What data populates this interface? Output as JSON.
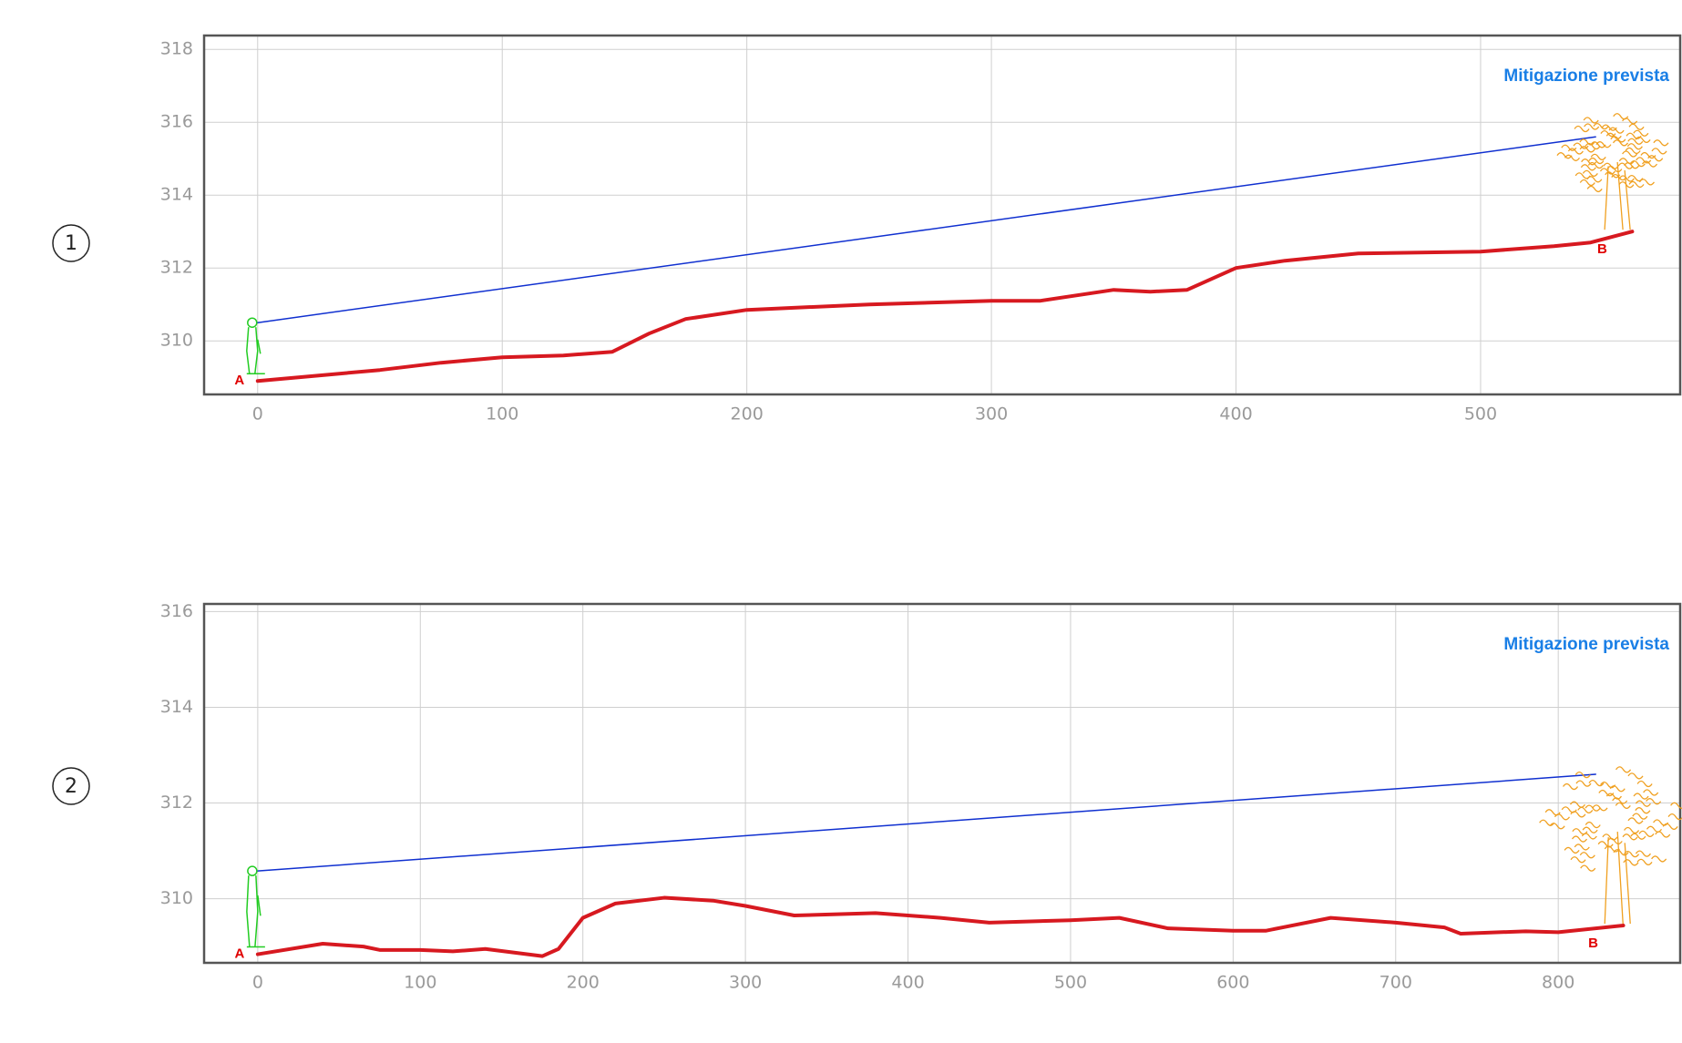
{
  "chart_data": [
    {
      "type": "line",
      "panel_label": "1",
      "annotation": "Mitigazione prevista",
      "annotation_color": "#1a7fe6",
      "start_label": "A",
      "end_label": "B",
      "label_color": "#e00000",
      "xlim": [
        -21.9,
        581.6
      ],
      "ylim": [
        308.53,
        318.38
      ],
      "xticks": [
        0,
        100,
        200,
        300,
        400,
        500
      ],
      "yticks": [
        310,
        312,
        314,
        316,
        318
      ],
      "grid": true,
      "series": [
        {
          "color": "#d71920",
          "line_width": 4,
          "x": [
            0,
            25,
            50,
            75,
            100,
            125,
            145,
            160,
            175,
            200,
            250,
            300,
            320,
            350,
            365,
            380,
            400,
            420,
            450,
            500,
            530,
            545,
            562
          ],
          "values": [
            308.9,
            309.05,
            309.2,
            309.4,
            309.55,
            309.6,
            309.7,
            310.2,
            310.6,
            310.85,
            311.0,
            311.1,
            311.1,
            311.4,
            311.35,
            311.4,
            312.0,
            312.2,
            312.4,
            312.45,
            312.6,
            312.7,
            313.0
          ]
        },
        {
          "color": "#1030d0",
          "line_width": 1.5,
          "x": [
            0,
            547
          ],
          "values": [
            310.5,
            315.6
          ]
        }
      ]
    },
    {
      "type": "line",
      "panel_label": "2",
      "annotation": "Mitigazione prevista",
      "annotation_color": "#1a7fe6",
      "start_label": "A",
      "end_label": "B",
      "label_color": "#e00000",
      "xlim": [
        -33,
        875
      ],
      "ylim": [
        308.66,
        316.16
      ],
      "xticks": [
        0,
        100,
        200,
        300,
        400,
        500,
        600,
        700,
        800
      ],
      "yticks": [
        310,
        312,
        314,
        316
      ],
      "grid": true,
      "series": [
        {
          "color": "#d71920",
          "line_width": 4,
          "x": [
            0,
            40,
            65,
            75,
            100,
            120,
            140,
            175,
            185,
            200,
            220,
            250,
            280,
            300,
            330,
            380,
            420,
            450,
            500,
            530,
            560,
            600,
            620,
            660,
            700,
            730,
            740,
            780,
            800,
            840
          ],
          "values": [
            308.84,
            309.06,
            309.0,
            308.93,
            308.93,
            308.9,
            308.95,
            308.8,
            308.95,
            309.6,
            309.9,
            310.02,
            309.96,
            309.85,
            309.65,
            309.7,
            309.6,
            309.5,
            309.55,
            309.6,
            309.38,
            309.33,
            309.33,
            309.6,
            309.5,
            309.4,
            309.27,
            309.32,
            309.3,
            309.44
          ]
        },
        {
          "color": "#1030d0",
          "line_width": 1.5,
          "x": [
            0,
            823
          ],
          "values": [
            310.58,
            312.6
          ]
        }
      ]
    }
  ]
}
